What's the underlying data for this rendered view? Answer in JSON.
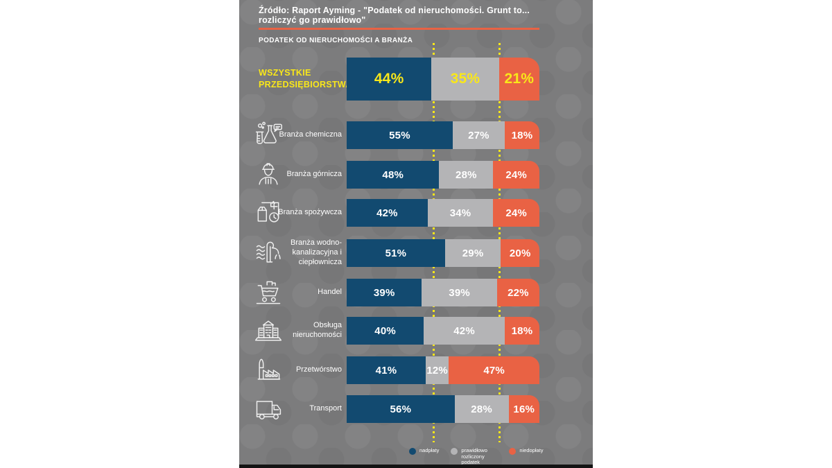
{
  "source_title": "Źródło: Raport Ayming - \"Podatek od nieruchomości. Grunt to... rozliczyć go prawidłowo\"",
  "section_title": "PODATEK OD NIERUCHOMOŚCI A BRANŻA",
  "colors": {
    "panel_background": "#7c7c7d",
    "bar_blue": "#124a70",
    "bar_gray": "#b4b4b6",
    "bar_orange": "#e96244",
    "accent_yellow": "#f9e71a",
    "divider_orange": "#e96244",
    "text_white": "#ffffff"
  },
  "chart_data": {
    "type": "bar",
    "subtype": "horizontal-stacked",
    "unit": "%",
    "title": "PODATEK OD NIERUCHOMOŚCI A BRANŻA",
    "series_names": [
      "nadpłaty",
      "prawidłowo rozliczony podatek",
      "niedopłaty"
    ],
    "xlim": [
      0,
      100
    ],
    "grid": "dotted-guides-at-44-and-79",
    "legend_position": "bottom",
    "rows": [
      {
        "label": "WSZYSTKIE PRZEDSIĘBIORSTWA",
        "icon": null,
        "values": [
          44,
          35,
          21
        ],
        "highlight": true
      },
      {
        "label": "Branża chemiczna",
        "icon": "chemistry-icon",
        "values": [
          55,
          27,
          18
        ],
        "highlight": false
      },
      {
        "label": "Branża górnicza",
        "icon": "miner-icon",
        "values": [
          48,
          28,
          24
        ],
        "highlight": false
      },
      {
        "label": "Branża spożywcza",
        "icon": "food-icon",
        "values": [
          42,
          34,
          24
        ],
        "highlight": false
      },
      {
        "label": "Branża wodno-kanalizacyjna i ciepłownicza",
        "icon": "water-icon",
        "values": [
          51,
          29,
          20
        ],
        "highlight": false
      },
      {
        "label": "Handel",
        "icon": "cart-icon",
        "values": [
          39,
          39,
          22
        ],
        "highlight": false
      },
      {
        "label": "Obsługa nieruchomości",
        "icon": "building-icon",
        "values": [
          40,
          42,
          18
        ],
        "highlight": false
      },
      {
        "label": "Przetwórstwo",
        "icon": "factory-icon",
        "values": [
          41,
          12,
          47
        ],
        "highlight": false
      },
      {
        "label": "Transport",
        "icon": "truck-icon",
        "values": [
          56,
          28,
          16
        ],
        "highlight": false
      }
    ],
    "legend": [
      {
        "label": "nadpłaty",
        "color": "#124a70"
      },
      {
        "label": "prawidłowo rozliczony podatek",
        "color": "#b4b4b6"
      },
      {
        "label": "niedopłaty",
        "color": "#e96244"
      }
    ]
  }
}
